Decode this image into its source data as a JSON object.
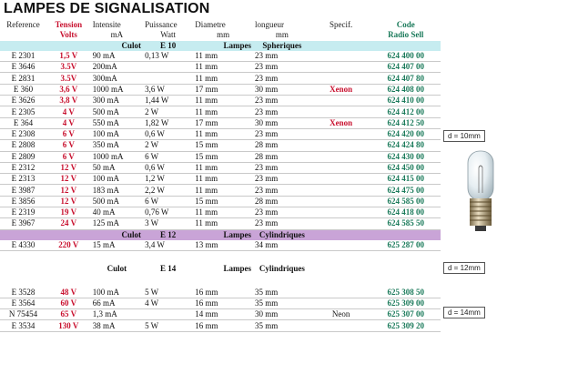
{
  "title": "LAMPES DE SIGNALISATION",
  "header1": [
    "Reference",
    "Tension",
    "Intensite",
    "Puissance",
    "Diametre",
    "longueur",
    "Specif.",
    "Code"
  ],
  "header2": [
    "",
    "Volts",
    "mA",
    "Watt",
    "mm",
    "mm",
    "",
    "Radio Sell"
  ],
  "sections": [
    {
      "band": {
        "a": "Culot",
        "b": "E 10",
        "c": "Lampes",
        "d": "Spheriques"
      },
      "rows": [
        [
          "E 2301",
          "1,5 V",
          "90 mA",
          "0,13 W",
          "11 mm",
          "23 mm",
          "",
          "624 400 00"
        ],
        [
          "E 3646",
          "3.5V",
          "200mA",
          "",
          "11 mm",
          "23 mm",
          "",
          "624 407 00"
        ],
        [
          "E 2831",
          "3.5V",
          "300mA",
          "",
          "11 mm",
          "23 mm",
          "",
          "624 407 80"
        ],
        [
          "E 360",
          "3,6 V",
          "1000 mA",
          "3,6 W",
          "17 mm",
          "30 mm",
          "Xenon",
          "624 408 00"
        ],
        [
          "E 3626",
          "3,8 V",
          "300 mA",
          "1,44 W",
          "11 mm",
          "23 mm",
          "",
          "624 410 00"
        ],
        [
          "E 2305",
          "4 V",
          "500 mA",
          "2 W",
          "11 mm",
          "23 mm",
          "",
          "624 412 00"
        ],
        [
          "E 364",
          "4 V",
          "550 mA",
          "1,82 W",
          "17 mm",
          "30 mm",
          "Xenon",
          "624 412 50"
        ],
        [
          "E 2308",
          "6 V",
          "100 mA",
          "0,6 W",
          "11 mm",
          "23 mm",
          "",
          "624 420 00"
        ],
        [
          "E 2808",
          "6 V",
          "350 mA",
          "2 W",
          "15 mm",
          "28 mm",
          "",
          "624 424 80"
        ],
        [
          "E 2809",
          "6 V",
          "1000 mA",
          "6 W",
          "15 mm",
          "28 mm",
          "",
          "624 430 00"
        ],
        [
          "E 2312",
          "12 V",
          "50 mA",
          "0,6 W",
          "11 mm",
          "23 mm",
          "",
          "624 450 00"
        ],
        [
          "E 2313",
          "12 V",
          "100 mA",
          "1,2 W",
          "11 mm",
          "23 mm",
          "",
          "624 415 00"
        ],
        [
          "E 3987",
          "12 V",
          "183 mA",
          "2,2 W",
          "11 mm",
          "23 mm",
          "",
          "624 475 00"
        ],
        [
          "E 3856",
          "12 V",
          "500 mA",
          "6 W",
          "15 mm",
          "28 mm",
          "",
          "624 585 00"
        ],
        [
          "E 2319",
          "19 V",
          "40 mA",
          "0,76 W",
          "11 mm",
          "23 mm",
          "",
          "624 418 00"
        ],
        [
          "E 3967",
          "24 V",
          "125 mA",
          "3 W",
          "11 mm",
          "23 mm",
          "",
          "624 585 50"
        ]
      ]
    },
    {
      "band": {
        "a": "Culot",
        "b": "E 12",
        "c": "Lampes",
        "d": "Cylindriques"
      },
      "rows": [
        [
          "E 4330",
          "220 V",
          "15 mA",
          "3,4 W",
          "13 mm",
          "34 mm",
          "",
          "625 287 00"
        ]
      ]
    },
    {
      "band": {
        "a": "Culot",
        "b": "E 14",
        "c": "Lampes",
        "d": "Cylindriques"
      },
      "rows": [
        [
          "E 3528",
          "48 V",
          "100 mA",
          "5 W",
          "16 mm",
          "35 mm",
          "",
          "625 308 50"
        ],
        [
          "E 3564",
          "60 V",
          "66 mA",
          "4 W",
          "16 mm",
          "35 mm",
          "",
          "625 309 00"
        ],
        [
          "N 75454",
          "65 V",
          "1,3 mA",
          "",
          "14 mm",
          "30 mm",
          "Neon",
          "625 307 00"
        ],
        [
          "E 3534",
          "130 V",
          "38 mA",
          "5 W",
          "16 mm",
          "35 mm",
          "",
          "625 309 20"
        ]
      ]
    }
  ],
  "side_labels": {
    "d10": "d = 10mm",
    "d12": "d = 12mm",
    "d14": "d = 14mm"
  },
  "colors": {
    "red": "#c8102e",
    "code_green": "#1a7a5a",
    "band_blue": "#c6ecf0",
    "band_purple": "#c9a4d7"
  }
}
